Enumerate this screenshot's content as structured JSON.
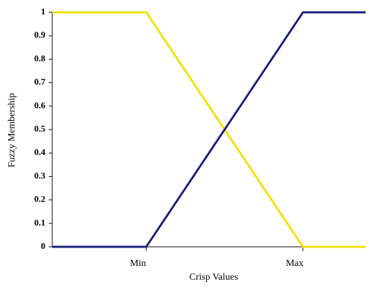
{
  "chart_data": {
    "type": "line",
    "x_label": "Crisp Values",
    "y_label": "Fuzzy Membership",
    "xlim": [
      0,
      100
    ],
    "xticks": [
      {
        "value": 30,
        "label": "Min"
      },
      {
        "value": 80,
        "label": "Max"
      }
    ],
    "ylim": [
      0,
      1
    ],
    "yticks": [
      0,
      0.1,
      0.2,
      0.3,
      0.4,
      0.5,
      0.6,
      0.7,
      0.8,
      0.9,
      1
    ],
    "series": [
      {
        "color": "#f2e100",
        "x": [
          0,
          30,
          80,
          100
        ],
        "values": [
          1,
          1,
          0,
          0
        ]
      },
      {
        "color": "#1c1c7a",
        "x": [
          0,
          30,
          80,
          100
        ],
        "values": [
          0,
          0,
          1,
          1
        ]
      }
    ]
  }
}
